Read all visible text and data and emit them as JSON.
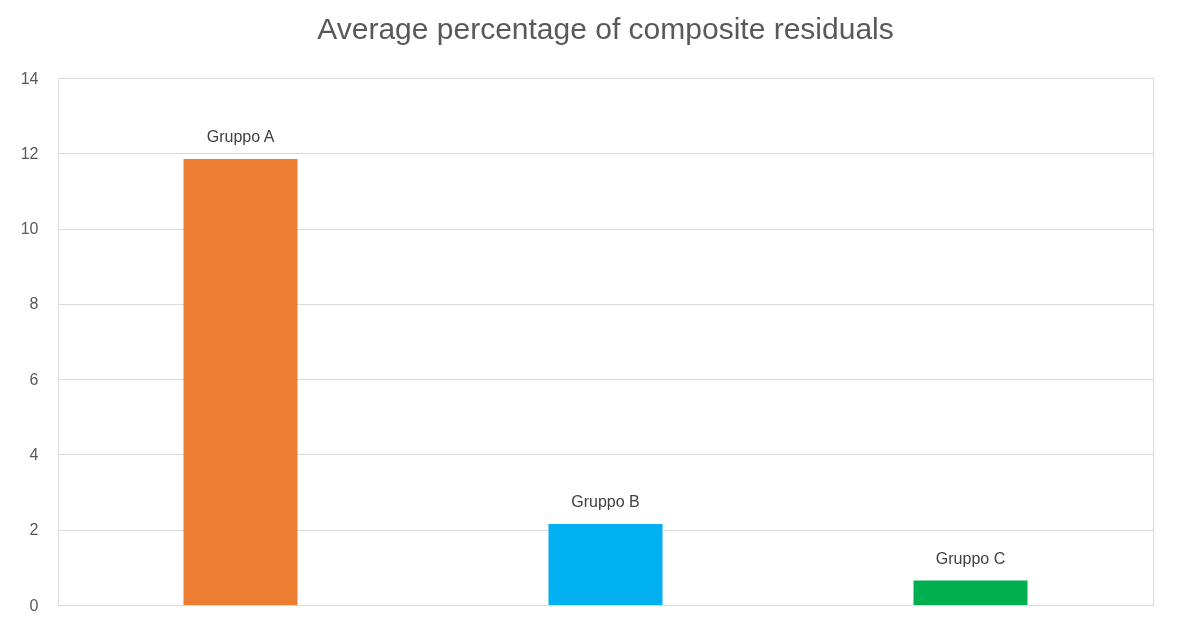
{
  "chart_data": {
    "type": "bar",
    "title": "Average percentage of composite residuals",
    "categories": [
      "Gruppo A",
      "Gruppo B",
      "Gruppo C"
    ],
    "values": [
      11.85,
      2.15,
      0.65
    ],
    "colors": [
      "#ed7d31",
      "#00b0f0",
      "#00b050"
    ],
    "ylim": [
      0,
      14
    ],
    "yticks": [
      0,
      2,
      4,
      6,
      8,
      10,
      12,
      14
    ],
    "grid": "y"
  }
}
